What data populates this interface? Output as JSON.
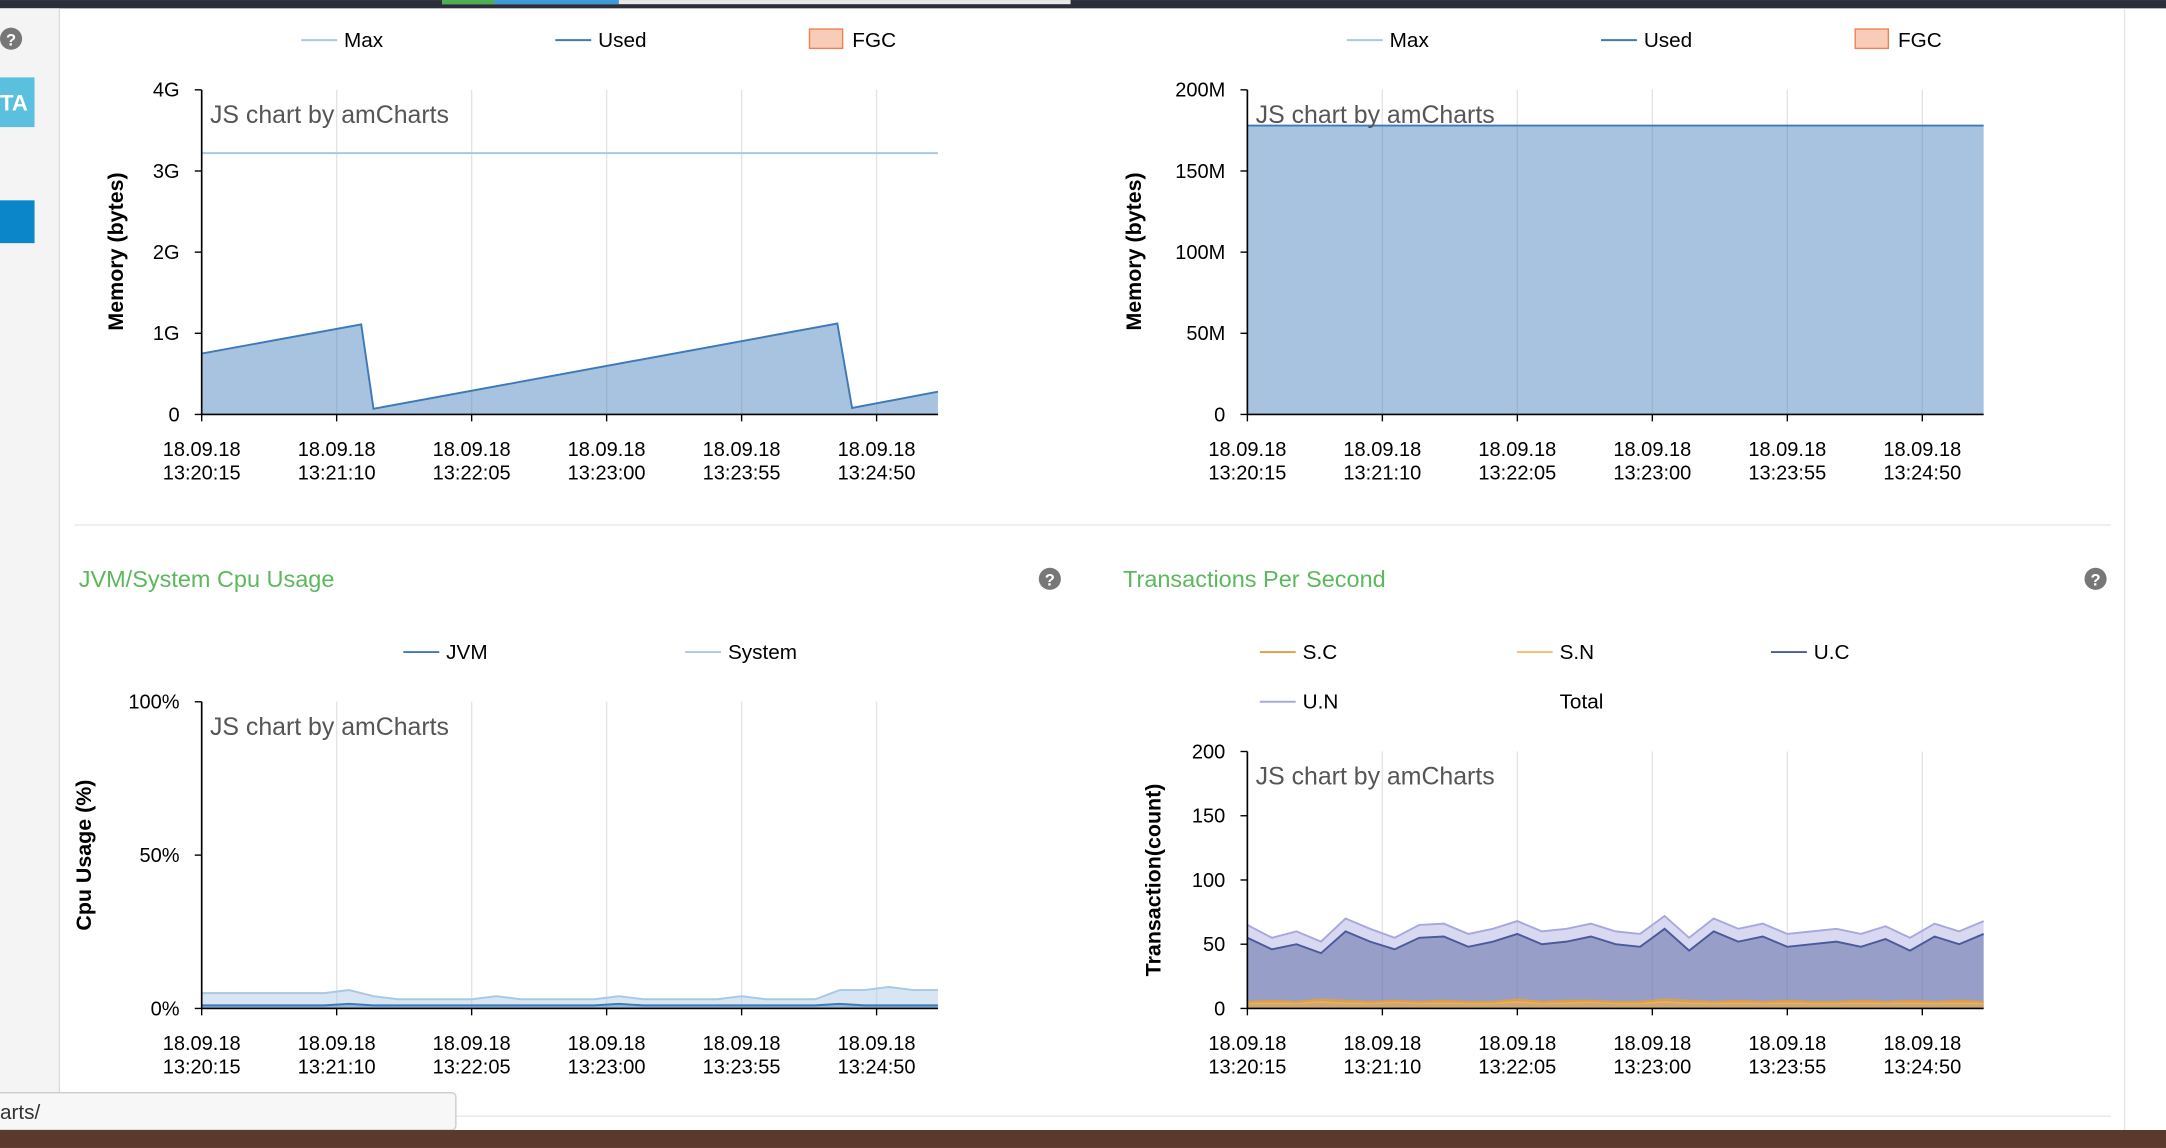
{
  "panels": [
    {
      "title": "JVM/System Cpu Usage"
    },
    {
      "title": "Transactions Per Second"
    }
  ],
  "sidebar": {
    "badge": "TA"
  },
  "help_icon": "?",
  "watermark": "JS chart by amCharts",
  "status_url": "arts/",
  "chart_data": [
    {
      "type": "area",
      "y_label": "Memory (bytes)",
      "xlim": [
        "18.09.18 13:20:15",
        "18.09.18 13:25:15"
      ],
      "xticks": [
        "18.09.18 13:20:15",
        "18.09.18 13:21:10",
        "18.09.18 13:22:05",
        "18.09.18 13:23:00",
        "18.09.18 13:23:55",
        "18.09.18 13:24:50"
      ],
      "ylim": [
        0,
        4000000000
      ],
      "yticks": [
        0,
        {
          "value": 1000000000,
          "label": "1G"
        },
        {
          "value": 2000000000,
          "label": "2G"
        },
        {
          "value": 3000000000,
          "label": "3G"
        },
        {
          "value": 4000000000,
          "label": "4G"
        }
      ],
      "grid": "x",
      "series": [
        {
          "name": "Max",
          "color": "#a8c8e4",
          "fill": false,
          "x": [
            "18.09.18 13:20:15",
            "18.09.18 13:25:15"
          ],
          "values": [
            3220000000,
            3220000000
          ]
        },
        {
          "name": "Used",
          "color": "#3d7ab8",
          "fill": true,
          "x": [
            "18.09.18 13:20:15",
            "18.09.18 13:21:20",
            "18.09.18 13:21:25",
            "18.09.18 13:24:34",
            "18.09.18 13:24:40",
            "18.09.18 13:25:15"
          ],
          "values": [
            750000000,
            1110000000,
            70000000,
            1120000000,
            80000000,
            280000000
          ]
        },
        {
          "name": "FGC",
          "color": "#f08050",
          "legend_marker": "box",
          "x": [],
          "values": []
        }
      ]
    },
    {
      "type": "area",
      "y_label": "Memory (bytes)",
      "xlim": [
        "18.09.18 13:20:15",
        "18.09.18 13:25:15"
      ],
      "xticks": [
        "18.09.18 13:20:15",
        "18.09.18 13:21:10",
        "18.09.18 13:22:05",
        "18.09.18 13:23:00",
        "18.09.18 13:23:55",
        "18.09.18 13:24:50"
      ],
      "ylim": [
        0,
        200000000
      ],
      "yticks": [
        0,
        {
          "value": 50000000,
          "label": "50M"
        },
        {
          "value": 100000000,
          "label": "100M"
        },
        {
          "value": 150000000,
          "label": "150M"
        },
        {
          "value": 200000000,
          "label": "200M"
        }
      ],
      "grid": "x",
      "series": [
        {
          "name": "Max",
          "color": "#a8c8e4",
          "fill": false,
          "x": [],
          "values": []
        },
        {
          "name": "Used",
          "color": "#3d7ab8",
          "fill": true,
          "x": [
            "18.09.18 13:20:15",
            "18.09.18 13:25:15"
          ],
          "values": [
            178000000,
            178000000
          ]
        },
        {
          "name": "FGC",
          "color": "#f08050",
          "legend_marker": "box",
          "x": [],
          "values": []
        }
      ]
    },
    {
      "type": "area",
      "y_label": "Cpu Usage (%)",
      "xlim": [
        "18.09.18 13:20:15",
        "18.09.18 13:25:15"
      ],
      "xticks": [
        "18.09.18 13:20:15",
        "18.09.18 13:21:10",
        "18.09.18 13:22:05",
        "18.09.18 13:23:00",
        "18.09.18 13:23:55",
        "18.09.18 13:24:50"
      ],
      "ylim": [
        0,
        100
      ],
      "yticks": [
        {
          "value": 0,
          "label": "0%"
        },
        {
          "value": 50,
          "label": "50%"
        },
        {
          "value": 100,
          "label": "100%"
        }
      ],
      "grid": "x",
      "x": [
        "18.09.18 13:20:15",
        "18.09.18 13:20:25",
        "18.09.18 13:20:35",
        "18.09.18 13:20:45",
        "18.09.18 13:20:55",
        "18.09.18 13:21:05",
        "18.09.18 13:21:15",
        "18.09.18 13:21:25",
        "18.09.18 13:21:35",
        "18.09.18 13:21:45",
        "18.09.18 13:21:55",
        "18.09.18 13:22:05",
        "18.09.18 13:22:15",
        "18.09.18 13:22:25",
        "18.09.18 13:22:35",
        "18.09.18 13:22:45",
        "18.09.18 13:22:55",
        "18.09.18 13:23:05",
        "18.09.18 13:23:15",
        "18.09.18 13:23:25",
        "18.09.18 13:23:35",
        "18.09.18 13:23:45",
        "18.09.18 13:23:55",
        "18.09.18 13:24:05",
        "18.09.18 13:24:15",
        "18.09.18 13:24:25",
        "18.09.18 13:24:35",
        "18.09.18 13:24:45",
        "18.09.18 13:24:55",
        "18.09.18 13:25:05",
        "18.09.18 13:25:15"
      ],
      "series": [
        {
          "name": "JVM",
          "color": "#3d7ab8",
          "fill": true,
          "values": [
            1,
            1,
            1,
            1,
            1,
            1,
            1.5,
            1,
            1,
            1,
            1,
            1,
            1,
            1,
            1,
            1,
            1,
            1.5,
            1,
            1,
            1,
            1,
            1,
            1,
            1,
            1,
            1.5,
            1,
            1,
            1,
            1
          ]
        },
        {
          "name": "System",
          "color": "#a8c8e4",
          "fill": true,
          "values": [
            5,
            5,
            5,
            5,
            5,
            5,
            6,
            4,
            3,
            3,
            3,
            3,
            4,
            3,
            3,
            3,
            3,
            4,
            3,
            3,
            3,
            3,
            4,
            3,
            3,
            3,
            6,
            6,
            7,
            6,
            6
          ]
        }
      ]
    },
    {
      "type": "area",
      "y_label": "Transaction(count)",
      "xlim": [
        "18.09.18 13:20:15",
        "18.09.18 13:25:15"
      ],
      "xticks": [
        "18.09.18 13:20:15",
        "18.09.18 13:21:10",
        "18.09.18 13:22:05",
        "18.09.18 13:23:00",
        "18.09.18 13:23:55",
        "18.09.18 13:24:50"
      ],
      "ylim": [
        0,
        200
      ],
      "yticks": [
        0,
        50,
        100,
        150,
        200
      ],
      "grid": "x",
      "x": [
        "18.09.18 13:20:15",
        "18.09.18 13:20:25",
        "18.09.18 13:20:35",
        "18.09.18 13:20:45",
        "18.09.18 13:20:55",
        "18.09.18 13:21:05",
        "18.09.18 13:21:15",
        "18.09.18 13:21:25",
        "18.09.18 13:21:35",
        "18.09.18 13:21:45",
        "18.09.18 13:21:55",
        "18.09.18 13:22:05",
        "18.09.18 13:22:15",
        "18.09.18 13:22:25",
        "18.09.18 13:22:35",
        "18.09.18 13:22:45",
        "18.09.18 13:22:55",
        "18.09.18 13:23:05",
        "18.09.18 13:23:15",
        "18.09.18 13:23:25",
        "18.09.18 13:23:35",
        "18.09.18 13:23:45",
        "18.09.18 13:23:55",
        "18.09.18 13:24:05",
        "18.09.18 13:24:15",
        "18.09.18 13:24:25",
        "18.09.18 13:24:35",
        "18.09.18 13:24:45",
        "18.09.18 13:24:55",
        "18.09.18 13:25:05",
        "18.09.18 13:25:15"
      ],
      "series": [
        {
          "name": "S.C",
          "color": "#e0a040",
          "fill": true,
          "values": [
            5,
            6,
            5,
            7,
            6,
            5,
            6,
            5,
            6,
            5,
            5,
            7,
            5,
            6,
            6,
            5,
            5,
            7,
            6,
            5,
            6,
            5,
            6,
            5,
            5,
            6,
            5,
            6,
            5,
            6,
            5
          ]
        },
        {
          "name": "S.N",
          "color": "#f0c070",
          "fill": true,
          "values": [
            4,
            4,
            4,
            5,
            4,
            4,
            5,
            4,
            4,
            4,
            4,
            5,
            4,
            4,
            5,
            4,
            4,
            5,
            4,
            4,
            4,
            4,
            4,
            4,
            4,
            4,
            4,
            4,
            4,
            4,
            4
          ]
        },
        {
          "name": "U.C",
          "color": "#4a5a9a",
          "fill": true,
          "values": [
            55,
            46,
            50,
            43,
            60,
            52,
            46,
            55,
            56,
            48,
            52,
            58,
            50,
            52,
            56,
            50,
            48,
            62,
            45,
            60,
            52,
            56,
            48,
            50,
            52,
            48,
            54,
            45,
            56,
            50,
            58
          ]
        },
        {
          "name": "U.N",
          "color": "#a8a8e0",
          "fill": true,
          "values": [
            65,
            55,
            60,
            52,
            70,
            62,
            55,
            65,
            66,
            58,
            62,
            68,
            60,
            62,
            66,
            60,
            58,
            72,
            55,
            70,
            62,
            66,
            58,
            60,
            62,
            58,
            64,
            55,
            66,
            60,
            68
          ]
        },
        {
          "name": "Total",
          "x": [],
          "values": []
        }
      ]
    }
  ]
}
